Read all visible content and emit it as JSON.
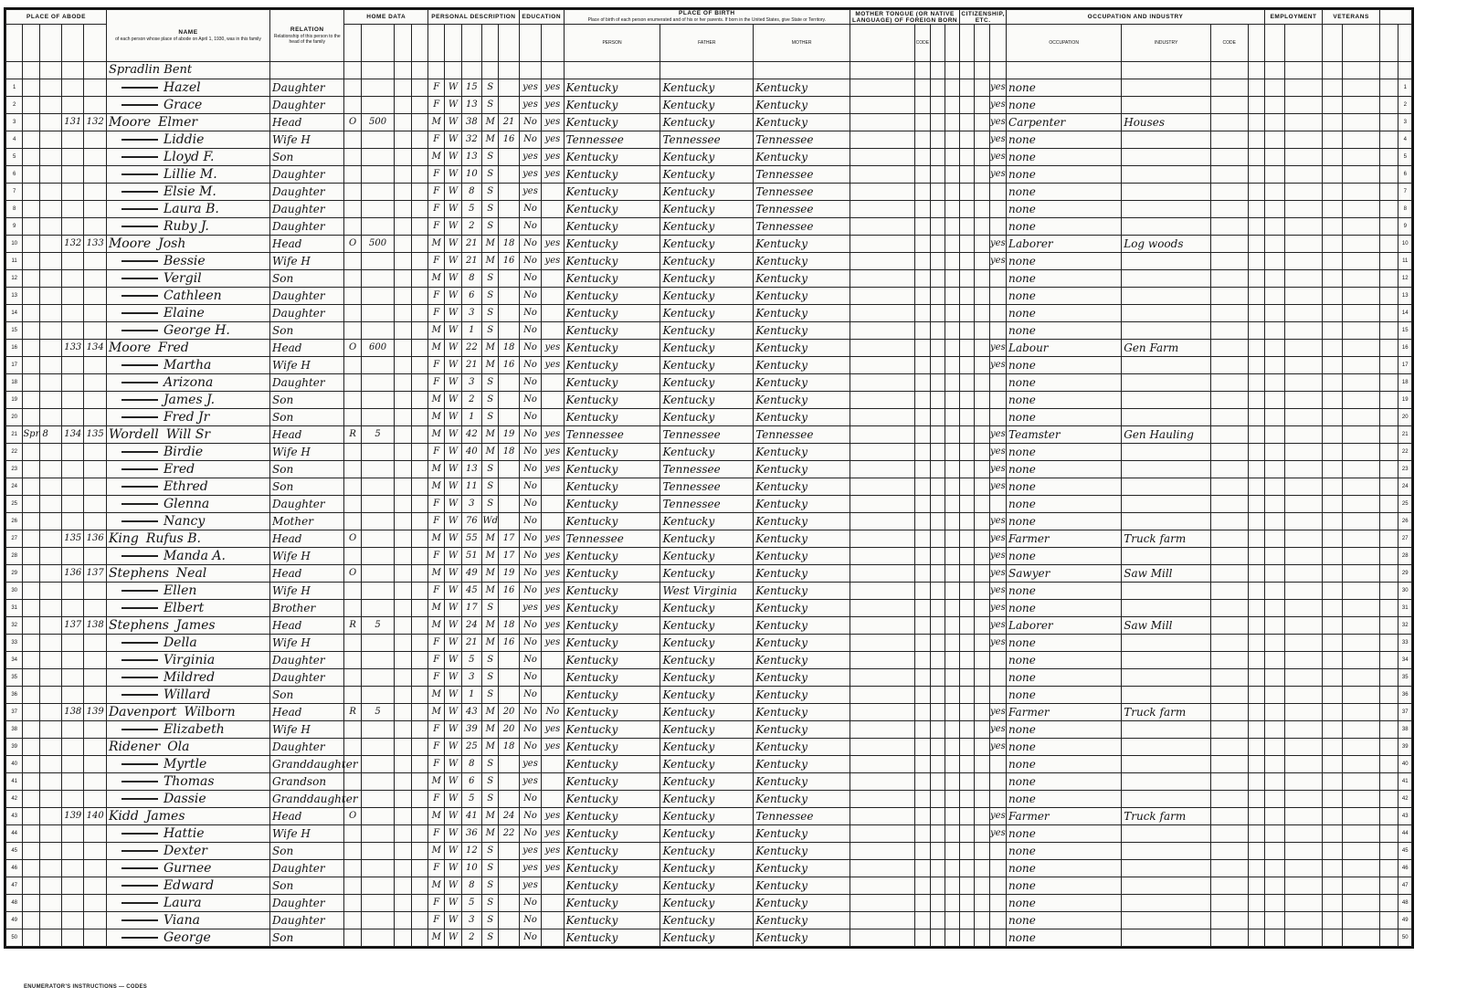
{
  "document": {
    "type": "1930 United States Census population schedule",
    "street": "Spradlin Bent"
  },
  "headers": {
    "place_of_abode": "PLACE OF ABODE",
    "name": "NAME",
    "name_desc": "of each person whose place of abode on April 1, 1930, was in this family",
    "relation": "RELATION",
    "relation_desc": "Relationship of this person to the head of the family",
    "home_data": "HOME DATA",
    "personal_description": "PERSONAL DESCRIPTION",
    "education": "EDUCATION",
    "place_of_birth": "PLACE OF BIRTH",
    "birth_desc": "Place of birth of each person enumerated and of his or her parents. If born in the United States, give State or Territory.",
    "person": "PERSON",
    "father": "FATHER",
    "mother": "MOTHER",
    "mother_tongue": "MOTHER TONGUE (OR NATIVE LANGUAGE) OF FOREIGN BORN",
    "code": "CODE",
    "citizenship": "CITIZENSHIP, ETC.",
    "occupation_industry": "OCCUPATION AND INDUSTRY",
    "occupation": "OCCUPATION",
    "industry": "INDUSTRY",
    "employment": "EMPLOYMENT",
    "veterans": "VETERANS"
  },
  "rows": [
    {
      "n": "Hazel",
      "r": "Daughter",
      "s": "F",
      "race": "W",
      "a": "15",
      "m": "S",
      "sch": "yes",
      "rd": "yes",
      "p": "Kentucky",
      "f": "Kentucky",
      "mo": "Kentucky",
      "eng": "yes",
      "occ": "none"
    },
    {
      "n": "Grace",
      "r": "Daughter",
      "s": "F",
      "race": "W",
      "a": "13",
      "m": "S",
      "sch": "yes",
      "rd": "yes",
      "p": "Kentucky",
      "f": "Kentucky",
      "mo": "Kentucky",
      "eng": "yes",
      "occ": "none"
    },
    {
      "d": "131",
      "fam": "132",
      "surname": "Moore",
      "n": "Elmer",
      "r": "Head",
      "t": "O",
      "v": "500",
      "s": "M",
      "race": "W",
      "a": "38",
      "m": "M",
      "am": "21",
      "sch": "No",
      "rd": "yes",
      "p": "Kentucky",
      "f": "Kentucky",
      "mo": "Kentucky",
      "eng": "yes",
      "occ": "Carpenter",
      "ind": "Houses"
    },
    {
      "n": "Liddie",
      "r": "Wife H",
      "s": "F",
      "race": "W",
      "a": "32",
      "m": "M",
      "am": "16",
      "sch": "No",
      "rd": "yes",
      "p": "Tennessee",
      "f": "Tennessee",
      "mo": "Tennessee",
      "eng": "yes",
      "occ": "none"
    },
    {
      "n": "Lloyd F.",
      "r": "Son",
      "s": "M",
      "race": "W",
      "a": "13",
      "m": "S",
      "sch": "yes",
      "rd": "yes",
      "p": "Kentucky",
      "f": "Kentucky",
      "mo": "Kentucky",
      "eng": "yes",
      "occ": "none"
    },
    {
      "n": "Lillie M.",
      "r": "Daughter",
      "s": "F",
      "race": "W",
      "a": "10",
      "m": "S",
      "sch": "yes",
      "rd": "yes",
      "p": "Kentucky",
      "f": "Kentucky",
      "mo": "Tennessee",
      "eng": "yes",
      "occ": "none"
    },
    {
      "n": "Elsie M.",
      "r": "Daughter",
      "s": "F",
      "race": "W",
      "a": "8",
      "m": "S",
      "sch": "yes",
      "p": "Kentucky",
      "f": "Kentucky",
      "mo": "Tennessee",
      "occ": "none"
    },
    {
      "n": "Laura B.",
      "r": "Daughter",
      "s": "F",
      "race": "W",
      "a": "5",
      "m": "S",
      "sch": "No",
      "p": "Kentucky",
      "f": "Kentucky",
      "mo": "Tennessee",
      "occ": "none"
    },
    {
      "n": "Ruby J.",
      "r": "Daughter",
      "s": "F",
      "race": "W",
      "a": "2",
      "m": "S",
      "sch": "No",
      "p": "Kentucky",
      "f": "Kentucky",
      "mo": "Tennessee",
      "occ": "none"
    },
    {
      "d": "132",
      "fam": "133",
      "surname": "Moore",
      "n": "Josh",
      "r": "Head",
      "t": "O",
      "v": "500",
      "s": "M",
      "race": "W",
      "a": "21",
      "m": "M",
      "am": "18",
      "sch": "No",
      "rd": "yes",
      "p": "Kentucky",
      "f": "Kentucky",
      "mo": "Kentucky",
      "eng": "yes",
      "occ": "Laborer",
      "ind": "Log woods"
    },
    {
      "n": "Bessie",
      "r": "Wife H",
      "s": "F",
      "race": "W",
      "a": "21",
      "m": "M",
      "am": "16",
      "sch": "No",
      "rd": "yes",
      "p": "Kentucky",
      "f": "Kentucky",
      "mo": "Kentucky",
      "eng": "yes",
      "occ": "none"
    },
    {
      "n": "Vergil",
      "r": "Son",
      "s": "M",
      "race": "W",
      "a": "8",
      "m": "S",
      "sch": "No",
      "p": "Kentucky",
      "f": "Kentucky",
      "mo": "Kentucky",
      "occ": "none"
    },
    {
      "n": "Cathleen",
      "r": "Daughter",
      "s": "F",
      "race": "W",
      "a": "6",
      "m": "S",
      "sch": "No",
      "p": "Kentucky",
      "f": "Kentucky",
      "mo": "Kentucky",
      "occ": "none"
    },
    {
      "n": "Elaine",
      "r": "Daughter",
      "s": "F",
      "race": "W",
      "a": "3",
      "m": "S",
      "sch": "No",
      "p": "Kentucky",
      "f": "Kentucky",
      "mo": "Kentucky",
      "occ": "none"
    },
    {
      "n": "George H.",
      "r": "Son",
      "s": "M",
      "race": "W",
      "a": "1",
      "m": "S",
      "sch": "No",
      "p": "Kentucky",
      "f": "Kentucky",
      "mo": "Kentucky",
      "occ": "none"
    },
    {
      "d": "133",
      "fam": "134",
      "surname": "Moore",
      "n": "Fred",
      "r": "Head",
      "t": "O",
      "v": "600",
      "s": "M",
      "race": "W",
      "a": "22",
      "m": "M",
      "am": "18",
      "sch": "No",
      "rd": "yes",
      "p": "Kentucky",
      "f": "Kentucky",
      "mo": "Kentucky",
      "eng": "yes",
      "occ": "Labour",
      "ind": "Gen Farm"
    },
    {
      "n": "Martha",
      "r": "Wife H",
      "s": "F",
      "race": "W",
      "a": "21",
      "m": "M",
      "am": "16",
      "sch": "No",
      "rd": "yes",
      "p": "Kentucky",
      "f": "Kentucky",
      "mo": "Kentucky",
      "eng": "yes",
      "occ": "none"
    },
    {
      "n": "Arizona",
      "r": "Daughter",
      "s": "F",
      "race": "W",
      "a": "3",
      "m": "S",
      "sch": "No",
      "p": "Kentucky",
      "f": "Kentucky",
      "mo": "Kentucky",
      "occ": "none"
    },
    {
      "n": "James J.",
      "r": "Son",
      "s": "M",
      "race": "W",
      "a": "2",
      "m": "S",
      "sch": "No",
      "p": "Kentucky",
      "f": "Kentucky",
      "mo": "Kentucky",
      "occ": "none"
    },
    {
      "n": "Fred Jr",
      "r": "Son",
      "s": "M",
      "race": "W",
      "a": "1",
      "m": "S",
      "sch": "No",
      "p": "Kentucky",
      "f": "Kentucky",
      "mo": "Kentucky",
      "occ": "none"
    },
    {
      "st": "Spr 8",
      "d": "134",
      "fam": "135",
      "surname": "Wordell",
      "n": "Will Sr",
      "r": "Head",
      "t": "R",
      "v": "5",
      "s": "M",
      "race": "W",
      "a": "42",
      "m": "M",
      "am": "19",
      "sch": "No",
      "rd": "yes",
      "p": "Tennessee",
      "f": "Tennessee",
      "mo": "Tennessee",
      "eng": "yes",
      "occ": "Teamster",
      "ind": "Gen Hauling"
    },
    {
      "n": "Birdie",
      "r": "Wife H",
      "s": "F",
      "race": "W",
      "a": "40",
      "m": "M",
      "am": "18",
      "sch": "No",
      "rd": "yes",
      "p": "Kentucky",
      "f": "Kentucky",
      "mo": "Kentucky",
      "eng": "yes",
      "occ": "none"
    },
    {
      "n": "Ered",
      "r": "Son",
      "s": "M",
      "race": "W",
      "a": "13",
      "m": "S",
      "sch": "No",
      "rd": "yes",
      "p": "Kentucky",
      "f": "Tennessee",
      "mo": "Kentucky",
      "eng": "yes",
      "occ": "none"
    },
    {
      "n": "Ethred",
      "r": "Son",
      "s": "M",
      "race": "W",
      "a": "11",
      "m": "S",
      "sch": "No",
      "p": "Kentucky",
      "f": "Tennessee",
      "mo": "Kentucky",
      "eng": "yes",
      "occ": "none"
    },
    {
      "n": "Glenna",
      "r": "Daughter",
      "s": "F",
      "race": "W",
      "a": "3",
      "m": "S",
      "sch": "No",
      "p": "Kentucky",
      "f": "Tennessee",
      "mo": "Kentucky",
      "occ": "none"
    },
    {
      "n": "Nancy",
      "r": "Mother",
      "s": "F",
      "race": "W",
      "a": "76",
      "m": "Wd",
      "sch": "No",
      "p": "Kentucky",
      "f": "Kentucky",
      "mo": "Kentucky",
      "eng": "yes",
      "occ": "none"
    },
    {
      "d": "135",
      "fam": "136",
      "surname": "King",
      "n": "Rufus B.",
      "r": "Head",
      "t": "O",
      "s": "M",
      "race": "W",
      "a": "55",
      "m": "M",
      "am": "17",
      "sch": "No",
      "rd": "yes",
      "p": "Tennessee",
      "f": "Kentucky",
      "mo": "Kentucky",
      "eng": "yes",
      "occ": "Farmer",
      "ind": "Truck farm"
    },
    {
      "n": "Manda A.",
      "r": "Wife H",
      "s": "F",
      "race": "W",
      "a": "51",
      "m": "M",
      "am": "17",
      "sch": "No",
      "rd": "yes",
      "p": "Kentucky",
      "f": "Kentucky",
      "mo": "Kentucky",
      "eng": "yes",
      "occ": "none"
    },
    {
      "d": "136",
      "fam": "137",
      "surname": "Stephens",
      "n": "Neal",
      "r": "Head",
      "t": "O",
      "s": "M",
      "race": "W",
      "a": "49",
      "m": "M",
      "am": "19",
      "sch": "No",
      "rd": "yes",
      "p": "Kentucky",
      "f": "Kentucky",
      "mo": "Kentucky",
      "eng": "yes",
      "occ": "Sawyer",
      "ind": "Saw Mill"
    },
    {
      "n": "Ellen",
      "r": "Wife H",
      "s": "F",
      "race": "W",
      "a": "45",
      "m": "M",
      "am": "16",
      "sch": "No",
      "rd": "yes",
      "p": "Kentucky",
      "f": "West Virginia",
      "mo": "Kentucky",
      "eng": "yes",
      "occ": "none"
    },
    {
      "n": "Elbert",
      "r": "Brother",
      "s": "M",
      "race": "W",
      "a": "17",
      "m": "S",
      "sch": "yes",
      "rd": "yes",
      "p": "Kentucky",
      "f": "Kentucky",
      "mo": "Kentucky",
      "eng": "yes",
      "occ": "none"
    },
    {
      "d": "137",
      "fam": "138",
      "surname": "Stephens",
      "n": "James",
      "r": "Head",
      "t": "R",
      "v": "5",
      "s": "M",
      "race": "W",
      "a": "24",
      "m": "M",
      "am": "18",
      "sch": "No",
      "rd": "yes",
      "p": "Kentucky",
      "f": "Kentucky",
      "mo": "Kentucky",
      "eng": "yes",
      "occ": "Laborer",
      "ind": "Saw Mill"
    },
    {
      "n": "Della",
      "r": "Wife H",
      "s": "F",
      "race": "W",
      "a": "21",
      "m": "M",
      "am": "16",
      "sch": "No",
      "rd": "yes",
      "p": "Kentucky",
      "f": "Kentucky",
      "mo": "Kentucky",
      "eng": "yes",
      "occ": "none"
    },
    {
      "n": "Virginia",
      "r": "Daughter",
      "s": "F",
      "race": "W",
      "a": "5",
      "m": "S",
      "sch": "No",
      "p": "Kentucky",
      "f": "Kentucky",
      "mo": "Kentucky",
      "occ": "none"
    },
    {
      "n": "Mildred",
      "r": "Daughter",
      "s": "F",
      "race": "W",
      "a": "3",
      "m": "S",
      "sch": "No",
      "p": "Kentucky",
      "f": "Kentucky",
      "mo": "Kentucky",
      "occ": "none"
    },
    {
      "n": "Willard",
      "r": "Son",
      "s": "M",
      "race": "W",
      "a": "1",
      "m": "S",
      "sch": "No",
      "p": "Kentucky",
      "f": "Kentucky",
      "mo": "Kentucky",
      "occ": "none"
    },
    {
      "d": "138",
      "fam": "139",
      "surname": "Davenport",
      "n": "Wilborn",
      "r": "Head",
      "t": "R",
      "v": "5",
      "s": "M",
      "race": "W",
      "a": "43",
      "m": "M",
      "am": "20",
      "sch": "No",
      "rd": "No",
      "p": "Kentucky",
      "f": "Kentucky",
      "mo": "Kentucky",
      "eng": "yes",
      "occ": "Farmer",
      "ind": "Truck farm"
    },
    {
      "n": "Elizabeth",
      "r": "Wife H",
      "s": "F",
      "race": "W",
      "a": "39",
      "m": "M",
      "am": "20",
      "sch": "No",
      "rd": "yes",
      "p": "Kentucky",
      "f": "Kentucky",
      "mo": "Kentucky",
      "eng": "yes",
      "occ": "none"
    },
    {
      "surname": "Ridener",
      "n": "Ola",
      "r": "Daughter",
      "s": "F",
      "race": "W",
      "a": "25",
      "m": "M",
      "am": "18",
      "sch": "No",
      "rd": "yes",
      "p": "Kentucky",
      "f": "Kentucky",
      "mo": "Kentucky",
      "eng": "yes",
      "occ": "none"
    },
    {
      "n": "Myrtle",
      "r": "Granddaughter",
      "s": "F",
      "race": "W",
      "a": "8",
      "m": "S",
      "sch": "yes",
      "p": "Kentucky",
      "f": "Kentucky",
      "mo": "Kentucky",
      "occ": "none"
    },
    {
      "n": "Thomas",
      "r": "Grandson",
      "s": "M",
      "race": "W",
      "a": "6",
      "m": "S",
      "sch": "yes",
      "p": "Kentucky",
      "f": "Kentucky",
      "mo": "Kentucky",
      "occ": "none"
    },
    {
      "n": "Dassie",
      "r": "Granddaughter",
      "s": "F",
      "race": "W",
      "a": "5",
      "m": "S",
      "sch": "No",
      "p": "Kentucky",
      "f": "Kentucky",
      "mo": "Kentucky",
      "occ": "none"
    },
    {
      "d": "139",
      "fam": "140",
      "surname": "Kidd",
      "n": "James",
      "r": "Head",
      "t": "O",
      "s": "M",
      "race": "W",
      "a": "41",
      "m": "M",
      "am": "24",
      "sch": "No",
      "rd": "yes",
      "p": "Kentucky",
      "f": "Kentucky",
      "mo": "Tennessee",
      "eng": "yes",
      "occ": "Farmer",
      "ind": "Truck farm"
    },
    {
      "n": "Hattie",
      "r": "Wife H",
      "s": "F",
      "race": "W",
      "a": "36",
      "m": "M",
      "am": "22",
      "sch": "No",
      "rd": "yes",
      "p": "Kentucky",
      "f": "Kentucky",
      "mo": "Kentucky",
      "eng": "yes",
      "occ": "none"
    },
    {
      "n": "Dexter",
      "r": "Son",
      "s": "M",
      "race": "W",
      "a": "12",
      "m": "S",
      "sch": "yes",
      "rd": "yes",
      "p": "Kentucky",
      "f": "Kentucky",
      "mo": "Kentucky",
      "occ": "none"
    },
    {
      "n": "Gurnee",
      "r": "Daughter",
      "s": "F",
      "race": "W",
      "a": "10",
      "m": "S",
      "sch": "yes",
      "rd": "yes",
      "p": "Kentucky",
      "f": "Kentucky",
      "mo": "Kentucky",
      "occ": "none"
    },
    {
      "n": "Edward",
      "r": "Son",
      "s": "M",
      "race": "W",
      "a": "8",
      "m": "S",
      "sch": "yes",
      "p": "Kentucky",
      "f": "Kentucky",
      "mo": "Kentucky",
      "occ": "none"
    },
    {
      "n": "Laura",
      "r": "Daughter",
      "s": "F",
      "race": "W",
      "a": "5",
      "m": "S",
      "sch": "No",
      "p": "Kentucky",
      "f": "Kentucky",
      "mo": "Kentucky",
      "occ": "none"
    },
    {
      "n": "Viana",
      "r": "Daughter",
      "s": "F",
      "race": "W",
      "a": "3",
      "m": "S",
      "sch": "No",
      "p": "Kentucky",
      "f": "Kentucky",
      "mo": "Kentucky",
      "occ": "none"
    },
    {
      "n": "George",
      "r": "Son",
      "s": "M",
      "race": "W",
      "a": "2",
      "m": "S",
      "sch": "No",
      "p": "Kentucky",
      "f": "Kentucky",
      "mo": "Kentucky",
      "occ": "none"
    }
  ],
  "footer": {
    "note": "ENUMERATOR'S INSTRUCTIONS — CODES"
  }
}
